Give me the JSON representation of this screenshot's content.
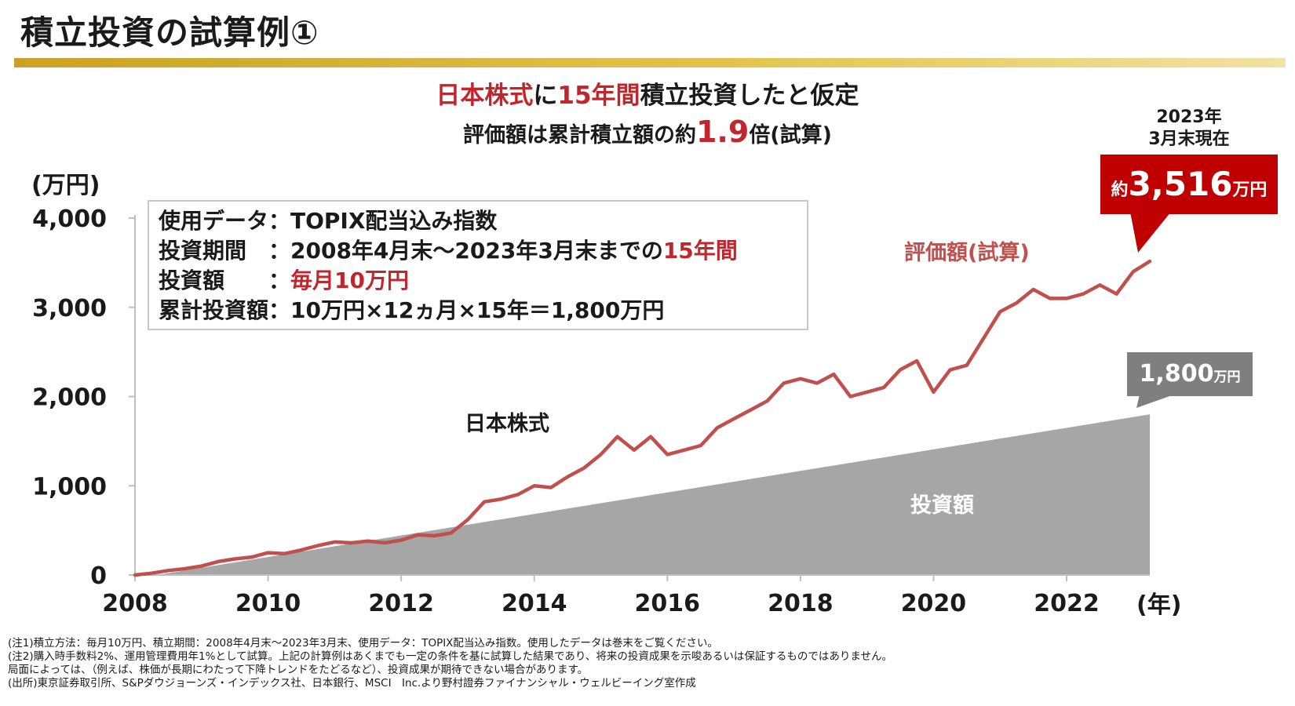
{
  "title": "積立投資の試算例①",
  "headline": {
    "line1": {
      "part1": "日本株式",
      "part2": "に",
      "part3": "15年間",
      "part4": "積立投資したと仮定"
    },
    "line2": {
      "part1": "評価額は累計積立額の約",
      "part2": "1.9",
      "part3": "倍(試算)"
    }
  },
  "as_of": {
    "line1": "2023年",
    "line2": "3月末現在"
  },
  "final_value": {
    "prefix": "約",
    "value": "3,516",
    "unit": "万円"
  },
  "invested_total": {
    "value": "1,800",
    "unit": "万円"
  },
  "info_box": {
    "line1": "使用データ：TOPIX配当込み指数",
    "line2a": "投資期間　：2008年4月末～2023年3月末までの",
    "line2b": "15年間",
    "line3a": "投資額　　：",
    "line3b": "毎月10万円",
    "line4": "累計投資額：10万円×12ヵ月×15年＝1,800万円"
  },
  "labels": {
    "series": "日本株式",
    "valuation": "評価額(試算)",
    "invested": "投資額"
  },
  "colors": {
    "valuation_line": "#c0504d",
    "invested_area": "#a6a6a6",
    "accent_red": "#c00000",
    "callout_gray": "#7f7f7f",
    "title_bar": "#d4b13a"
  },
  "chart_data": {
    "type": "area",
    "ylabel": "(万円)",
    "xlabel": "(年)",
    "ylim": [
      0,
      4000
    ],
    "xlim": [
      2008.0,
      2023.25
    ],
    "y_ticks": [
      0,
      1000,
      2000,
      3000,
      4000
    ],
    "y_tick_labels": [
      "0",
      "1,000",
      "2,000",
      "3,000",
      "4,000"
    ],
    "x_ticks": [
      2008,
      2010,
      2012,
      2014,
      2016,
      2018,
      2020,
      2022
    ],
    "x_tick_labels": [
      "2008",
      "2010",
      "2012",
      "2014",
      "2016",
      "2018",
      "2020",
      "2022"
    ],
    "grid": false,
    "series": [
      {
        "name": "投資額",
        "kind": "area",
        "x": [
          2008.33,
          2023.25
        ],
        "y": [
          0,
          1800
        ]
      },
      {
        "name": "評価額(試算)",
        "kind": "line",
        "x": [
          2008.0,
          2008.25,
          2008.5,
          2008.75,
          2009.0,
          2009.25,
          2009.5,
          2009.75,
          2010.0,
          2010.25,
          2010.5,
          2010.75,
          2011.0,
          2011.25,
          2011.5,
          2011.75,
          2012.0,
          2012.25,
          2012.5,
          2012.75,
          2013.0,
          2013.25,
          2013.5,
          2013.75,
          2014.0,
          2014.25,
          2014.5,
          2014.75,
          2015.0,
          2015.25,
          2015.5,
          2015.75,
          2016.0,
          2016.25,
          2016.5,
          2016.75,
          2017.0,
          2017.25,
          2017.5,
          2017.75,
          2018.0,
          2018.25,
          2018.5,
          2018.75,
          2019.0,
          2019.25,
          2019.5,
          2019.75,
          2020.0,
          2020.25,
          2020.5,
          2020.75,
          2021.0,
          2021.25,
          2021.5,
          2021.75,
          2022.0,
          2022.25,
          2022.5,
          2022.75,
          2023.0,
          2023.25
        ],
        "y": [
          0,
          20,
          50,
          70,
          100,
          150,
          180,
          200,
          250,
          240,
          280,
          330,
          370,
          360,
          380,
          360,
          390,
          450,
          440,
          470,
          620,
          820,
          850,
          900,
          1000,
          980,
          1100,
          1200,
          1350,
          1550,
          1400,
          1550,
          1350,
          1400,
          1450,
          1650,
          1750,
          1850,
          1950,
          2150,
          2200,
          2150,
          2250,
          2000,
          2050,
          2100,
          2300,
          2400,
          2050,
          2300,
          2350,
          2650,
          2950,
          3050,
          3200,
          3100,
          3100,
          3150,
          3250,
          3150,
          3400,
          3516
        ]
      }
    ]
  },
  "notes": [
    "(注1)積立方法：毎月10万円、積立期間：2008年4月末～2023年3月末、使用データ：TOPIX配当込み指数。使用したデータは巻末をご覧ください。",
    "(注2)購入時手数料2%、運用管理費用年1%として試算。上記の計算例はあくまでも一定の条件を基に試算した結果であり、将来の投資成果を示唆あるいは保証するものではありません。",
    "局面によっては、（例えば、株価が長期にわたって下降トレンドをたどるなど）、投資成果が期待できない場合があります。",
    "(出所)東京証券取引所、S&Pダウジョーンズ・インデックス社、日本銀行、MSCI　Inc.より野村證券ファイナンシャル・ウェルビーイング室作成"
  ]
}
